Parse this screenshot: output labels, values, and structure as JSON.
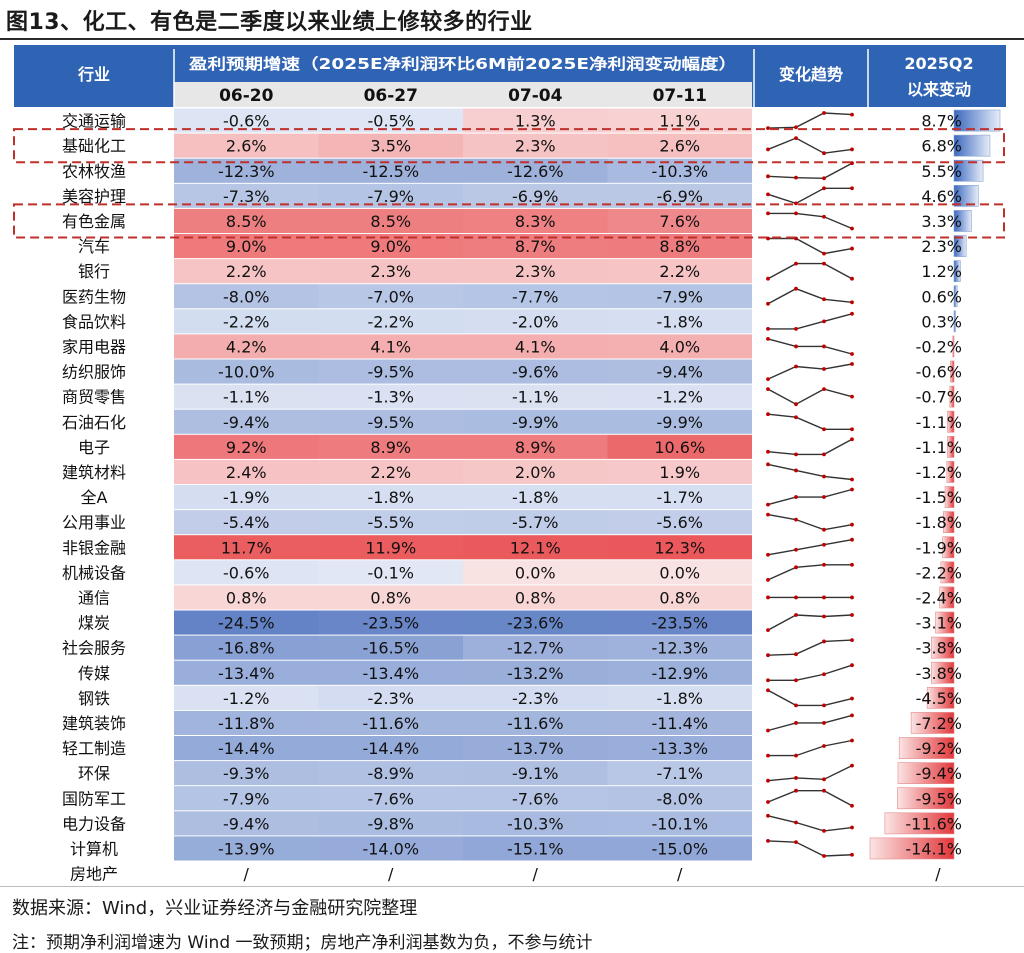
{
  "title": "图13、化工、有色是二季度以来业绩上修较多的行业",
  "header": {
    "industry": "行业",
    "group": "盈利预期增速（2025E净利润环比6M前2025E净利润变动幅度）",
    "trend": "变化趋势",
    "change_line1": "2025Q2",
    "change_line2": "以来变动"
  },
  "colors": {
    "header_bg": "#2f63b4",
    "subheader_bg": "#e7e7e7",
    "positive": "#e8474a",
    "negative": "#5577c0",
    "bar_positive": "#3b68bf",
    "bar_negative": "#e2373a",
    "sparkline": "#333333",
    "sparkline_marker": "#c00000",
    "highlight_box": "#c0302b"
  },
  "highlighted_rows": [
    "基础化工",
    "有色金属"
  ],
  "footnotes": {
    "source": "数据来源：Wind，兴业证券经济与金融研究院整理",
    "note": "注：预期净利润增速为 Wind 一致预期；房地产净利润基数为负，不参与统计"
  },
  "chart_data": {
    "type": "table",
    "dates": [
      "06-20",
      "06-27",
      "07-04",
      "07-11"
    ],
    "rows": [
      {
        "name": "交通运输",
        "values": [
          "-0.6%",
          "-0.5%",
          "1.3%",
          "1.1%"
        ],
        "change": "8.7%"
      },
      {
        "name": "基础化工",
        "values": [
          "2.6%",
          "3.5%",
          "2.3%",
          "2.6%"
        ],
        "change": "6.8%"
      },
      {
        "name": "农林牧渔",
        "values": [
          "-12.3%",
          "-12.5%",
          "-12.6%",
          "-10.3%"
        ],
        "change": "5.5%"
      },
      {
        "name": "美容护理",
        "values": [
          "-7.3%",
          "-7.9%",
          "-6.9%",
          "-6.9%"
        ],
        "change": "4.6%"
      },
      {
        "name": "有色金属",
        "values": [
          "8.5%",
          "8.5%",
          "8.3%",
          "7.6%"
        ],
        "change": "3.3%"
      },
      {
        "name": "汽车",
        "values": [
          "9.0%",
          "9.0%",
          "8.7%",
          "8.8%"
        ],
        "change": "2.3%"
      },
      {
        "name": "银行",
        "values": [
          "2.2%",
          "2.3%",
          "2.3%",
          "2.2%"
        ],
        "change": "1.2%"
      },
      {
        "name": "医药生物",
        "values": [
          "-8.0%",
          "-7.0%",
          "-7.7%",
          "-7.9%"
        ],
        "change": "0.6%"
      },
      {
        "name": "食品饮料",
        "values": [
          "-2.2%",
          "-2.2%",
          "-2.0%",
          "-1.8%"
        ],
        "change": "0.3%"
      },
      {
        "name": "家用电器",
        "values": [
          "4.2%",
          "4.1%",
          "4.1%",
          "4.0%"
        ],
        "change": "-0.2%"
      },
      {
        "name": "纺织服饰",
        "values": [
          "-10.0%",
          "-9.5%",
          "-9.6%",
          "-9.4%"
        ],
        "change": "-0.6%"
      },
      {
        "name": "商贸零售",
        "values": [
          "-1.1%",
          "-1.3%",
          "-1.1%",
          "-1.2%"
        ],
        "change": "-0.7%"
      },
      {
        "name": "石油石化",
        "values": [
          "-9.4%",
          "-9.5%",
          "-9.9%",
          "-9.9%"
        ],
        "change": "-1.1%"
      },
      {
        "name": "电子",
        "values": [
          "9.2%",
          "8.9%",
          "8.9%",
          "10.6%"
        ],
        "change": "-1.1%"
      },
      {
        "name": "建筑材料",
        "values": [
          "2.4%",
          "2.2%",
          "2.0%",
          "1.9%"
        ],
        "change": "-1.2%"
      },
      {
        "name": "全A",
        "values": [
          "-1.9%",
          "-1.8%",
          "-1.8%",
          "-1.7%"
        ],
        "change": "-1.5%"
      },
      {
        "name": "公用事业",
        "values": [
          "-5.4%",
          "-5.5%",
          "-5.7%",
          "-5.6%"
        ],
        "change": "-1.8%"
      },
      {
        "name": "非银金融",
        "values": [
          "11.7%",
          "11.9%",
          "12.1%",
          "12.3%"
        ],
        "change": "-1.9%"
      },
      {
        "name": "机械设备",
        "values": [
          "-0.6%",
          "-0.1%",
          "0.0%",
          "0.0%"
        ],
        "change": "-2.2%"
      },
      {
        "name": "通信",
        "values": [
          "0.8%",
          "0.8%",
          "0.8%",
          "0.8%"
        ],
        "change": "-2.4%"
      },
      {
        "name": "煤炭",
        "values": [
          "-24.5%",
          "-23.5%",
          "-23.6%",
          "-23.5%"
        ],
        "change": "-3.1%"
      },
      {
        "name": "社会服务",
        "values": [
          "-16.8%",
          "-16.5%",
          "-12.7%",
          "-12.3%"
        ],
        "change": "-3.8%"
      },
      {
        "name": "传媒",
        "values": [
          "-13.4%",
          "-13.4%",
          "-13.2%",
          "-12.9%"
        ],
        "change": "-3.8%"
      },
      {
        "name": "钢铁",
        "values": [
          "-1.2%",
          "-2.3%",
          "-2.3%",
          "-1.8%"
        ],
        "change": "-4.5%"
      },
      {
        "name": "建筑装饰",
        "values": [
          "-11.8%",
          "-11.6%",
          "-11.6%",
          "-11.4%"
        ],
        "change": "-7.2%"
      },
      {
        "name": "轻工制造",
        "values": [
          "-14.4%",
          "-14.4%",
          "-13.7%",
          "-13.3%"
        ],
        "change": "-9.2%"
      },
      {
        "name": "环保",
        "values": [
          "-9.3%",
          "-8.9%",
          "-9.1%",
          "-7.1%"
        ],
        "change": "-9.4%"
      },
      {
        "name": "国防军工",
        "values": [
          "-7.9%",
          "-7.6%",
          "-7.6%",
          "-8.0%"
        ],
        "change": "-9.5%"
      },
      {
        "name": "电力设备",
        "values": [
          "-9.4%",
          "-9.8%",
          "-10.3%",
          "-10.1%"
        ],
        "change": "-11.6%"
      },
      {
        "name": "计算机",
        "values": [
          "-13.9%",
          "-14.0%",
          "-15.1%",
          "-15.0%"
        ],
        "change": "-14.1%"
      },
      {
        "name": "房地产",
        "values": [
          "/",
          "/",
          "/",
          "/"
        ],
        "change": "/"
      }
    ]
  }
}
